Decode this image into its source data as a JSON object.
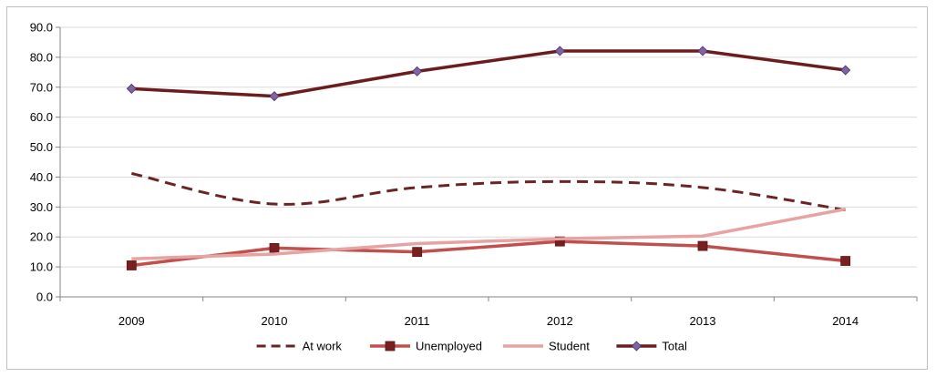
{
  "chart_data": {
    "type": "line",
    "title": "",
    "xlabel": "",
    "ylabel": "",
    "categories": [
      "2009",
      "2010",
      "2011",
      "2012",
      "2013",
      "2014"
    ],
    "ylim": [
      0,
      90
    ],
    "ytick_step": 10,
    "ytick_labels": [
      "0.0",
      "10.0",
      "20.0",
      "30.0",
      "40.0",
      "50.0",
      "60.0",
      "70.0",
      "80.0",
      "90.0"
    ],
    "grid": true,
    "legend_position": "bottom",
    "series": [
      {
        "name": "At work",
        "values": [
          41.2,
          31.0,
          36.5,
          38.5,
          36.5,
          29.0
        ],
        "color": "#6b2424",
        "style": "dashed",
        "marker": "none"
      },
      {
        "name": "Unemployed",
        "values": [
          10.5,
          16.3,
          15.0,
          18.5,
          17.0,
          12.0
        ],
        "color": "#c0504d",
        "style": "solid",
        "marker": "square",
        "marker_color": "#7a1f1f"
      },
      {
        "name": "Student",
        "values": [
          12.7,
          14.3,
          17.8,
          19.4,
          20.3,
          29.3
        ],
        "color": "#e6a3a1",
        "style": "solid",
        "marker": "none"
      },
      {
        "name": "Total",
        "values": [
          69.5,
          67.0,
          75.3,
          82.1,
          82.1,
          75.7
        ],
        "color": "#6b1c1c",
        "style": "solid",
        "marker": "diamond",
        "marker_color": "#8064a2"
      }
    ]
  }
}
